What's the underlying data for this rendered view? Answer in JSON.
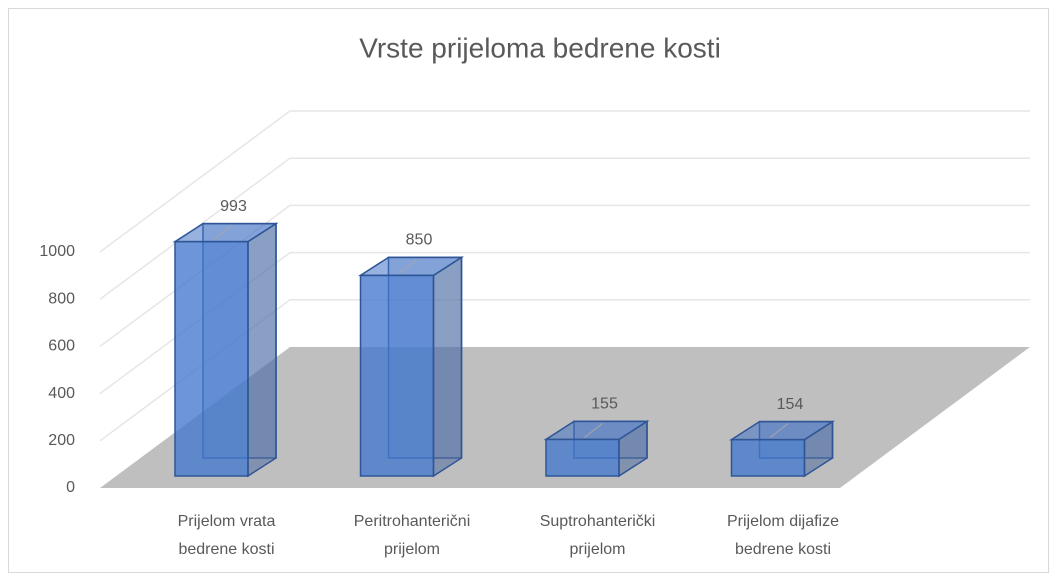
{
  "chart_data": {
    "type": "bar3d",
    "title": "Vrste prijeloma bedrene kosti",
    "categories": [
      "Prijelom vrata bedrene kosti",
      "Peritrohanterični prijelom",
      "Suptrohanterički prijelom",
      "Prijelom dijafize bedrene kosti"
    ],
    "values": [
      993,
      850,
      155,
      154
    ],
    "color": "#4472c4",
    "ylim": [
      0,
      1000
    ],
    "yticks": [
      0,
      200,
      400,
      600,
      800,
      1000
    ],
    "grid": true
  }
}
